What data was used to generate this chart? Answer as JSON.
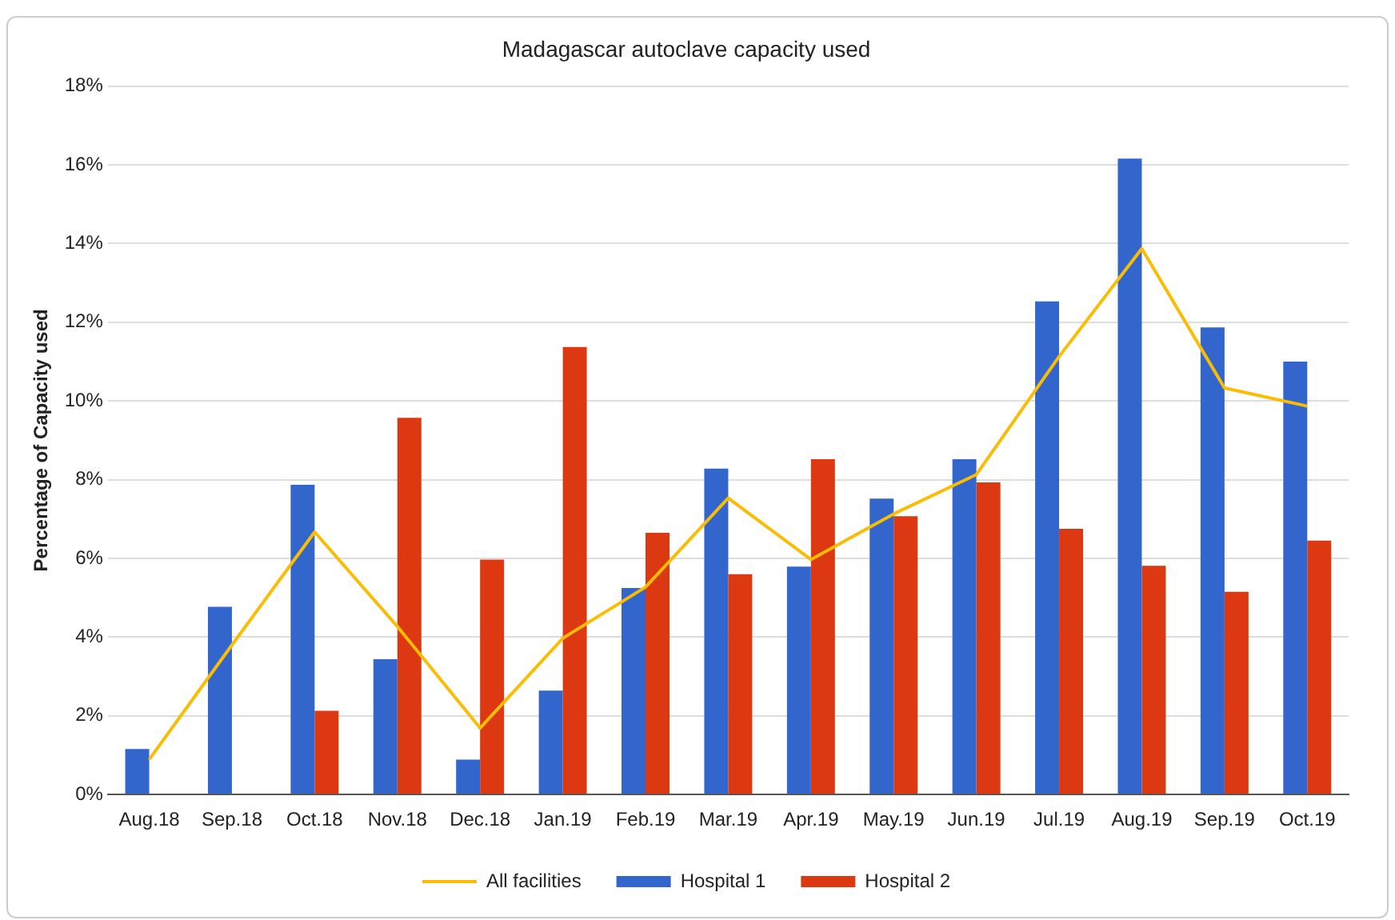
{
  "chart_data": {
    "type": "bar",
    "title": "Madagascar autoclave capacity used",
    "ylabel": "Percentage of Capacity used",
    "categories": [
      "Aug.18",
      "Sep.18",
      "Oct.18",
      "Nov.18",
      "Dec.18",
      "Jan.19",
      "Feb.19",
      "Mar.19",
      "Apr.19",
      "May.19",
      "Jun.19",
      "Jul.19",
      "Aug.19",
      "Sep.19",
      "Oct.19"
    ],
    "series": [
      {
        "name": "Hospital 1",
        "color": "#3366cc",
        "values": [
          1.16,
          4.77,
          7.87,
          3.44,
          0.89,
          2.64,
          5.25,
          8.28,
          5.79,
          7.52,
          8.52,
          12.53,
          16.16,
          11.87,
          11.0
        ]
      },
      {
        "name": "Hospital 2",
        "color": "#dc3912",
        "values": [
          null,
          null,
          2.13,
          9.57,
          5.97,
          11.37,
          6.65,
          5.6,
          8.52,
          7.07,
          7.93,
          6.75,
          5.81,
          5.15,
          6.45
        ]
      },
      {
        "name": "All facilities",
        "type": "line",
        "color": "#fbbc04",
        "values": [
          0.89,
          3.8,
          6.67,
          4.27,
          1.69,
          3.97,
          5.27,
          7.53,
          5.97,
          7.13,
          8.13,
          11.13,
          13.87,
          10.33,
          9.87
        ]
      }
    ],
    "ylim": [
      0,
      18
    ],
    "yticks": [
      {
        "value": 0,
        "label": "0%"
      },
      {
        "value": 2,
        "label": "2%"
      },
      {
        "value": 4,
        "label": "4%"
      },
      {
        "value": 6,
        "label": "6%"
      },
      {
        "value": 8,
        "label": "8%"
      },
      {
        "value": 10,
        "label": "10%"
      },
      {
        "value": 12,
        "label": "12%"
      },
      {
        "value": 14,
        "label": "14%"
      },
      {
        "value": 16,
        "label": "16%"
      },
      {
        "value": 18,
        "label": "18%"
      }
    ],
    "grid": "y",
    "legend": "bottom",
    "marker": "none",
    "line_style": "solid"
  }
}
